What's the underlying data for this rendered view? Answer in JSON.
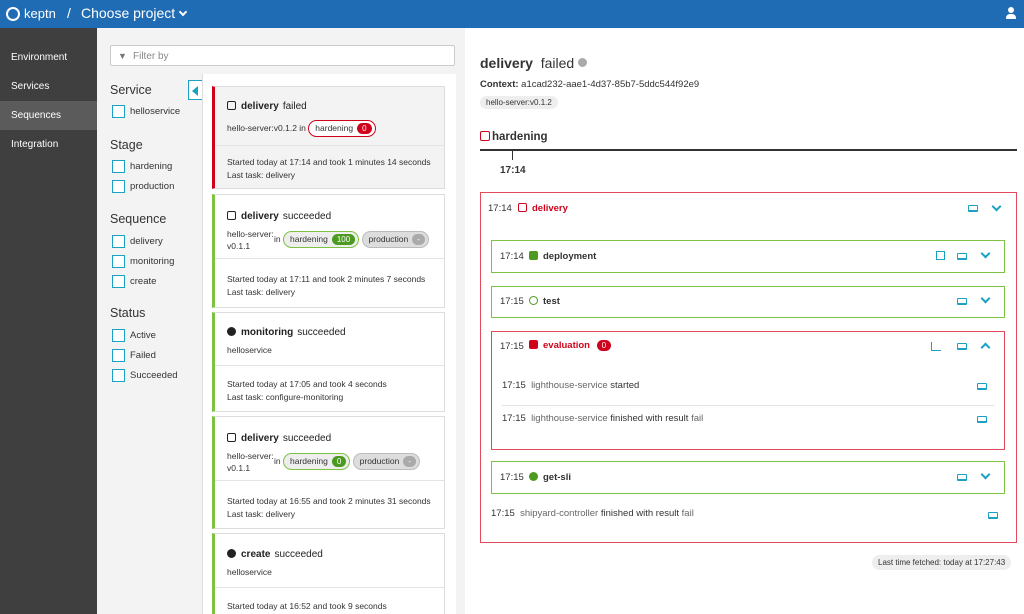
{
  "header": {
    "logo": "keptn",
    "separator": "/",
    "project": "Choose project"
  },
  "nav": [
    "Environment",
    "Services",
    "Sequences",
    "Integration"
  ],
  "filter": {
    "placeholder": "Filter by",
    "groups": [
      {
        "title": "Service",
        "options": [
          "helloservice"
        ]
      },
      {
        "title": "Stage",
        "options": [
          "hardening",
          "production"
        ]
      },
      {
        "title": "Sequence",
        "options": [
          "delivery",
          "monitoring",
          "create"
        ]
      },
      {
        "title": "Status",
        "options": [
          "Active",
          "Failed",
          "Succeeded"
        ]
      }
    ]
  },
  "sequences": [
    {
      "name": "delivery",
      "status": "failed",
      "service": "hello-server:v0.1.2",
      "in": "in",
      "stages": [
        {
          "name": "hardening",
          "count": 0
        }
      ],
      "started": "Started today at 17:14 and took 1 minutes 14 seconds",
      "task": "Last task: delivery"
    },
    {
      "name": "delivery",
      "status": "succeeded",
      "service": "hello-server:v0.1.1",
      "in": "in",
      "stages": [
        {
          "name": "hardening",
          "count": 100
        },
        {
          "name": "production",
          "count": "-"
        }
      ],
      "started": "Started today at 17:11 and took 2 minutes 7 seconds",
      "task": "Last task: delivery"
    },
    {
      "name": "monitoring",
      "status": "succeeded",
      "service": "helloservice",
      "started": "Started today at 17:05 and took 4 seconds",
      "task": "Last task: configure-monitoring"
    },
    {
      "name": "delivery",
      "status": "succeeded",
      "service": "hello-server:v0.1.1",
      "in": "in",
      "stages": [
        {
          "name": "hardening",
          "count": 0
        },
        {
          "name": "production",
          "count": "-"
        }
      ],
      "started": "Started today at 16:55 and took 2 minutes 31 seconds",
      "task": "Last task: delivery"
    },
    {
      "name": "create",
      "status": "succeeded",
      "service": "helloservice",
      "started": "Started today at 16:52 and took 9 seconds"
    }
  ],
  "detail": {
    "name": "delivery",
    "status": "failed",
    "context_label": "Context:",
    "context": "a1cad232-aae1-4d37-85b7-5ddc544f92e9",
    "tag": "hello-server:v0.1.2",
    "stage": "hardening",
    "time": "17:14",
    "sequence": {
      "time": "17:14",
      "name": "delivery",
      "tasks": [
        {
          "time": "17:14",
          "name": "deployment"
        },
        {
          "time": "17:15",
          "name": "test"
        },
        {
          "time": "17:15",
          "name": "evaluation",
          "count": 0,
          "events": [
            {
              "time": "17:15",
              "service": "lighthouse-service",
              "text": "started"
            },
            {
              "time": "17:15",
              "service": "lighthouse-service",
              "text": "finished with result",
              "result": "fail"
            }
          ]
        },
        {
          "time": "17:15",
          "name": "get-sli"
        }
      ],
      "events": [
        {
          "time": "17:15",
          "service": "shipyard-controller",
          "text": "finished with result",
          "result": "fail"
        }
      ]
    }
  },
  "footer": "Last time fetched: today at 17:27:43"
}
